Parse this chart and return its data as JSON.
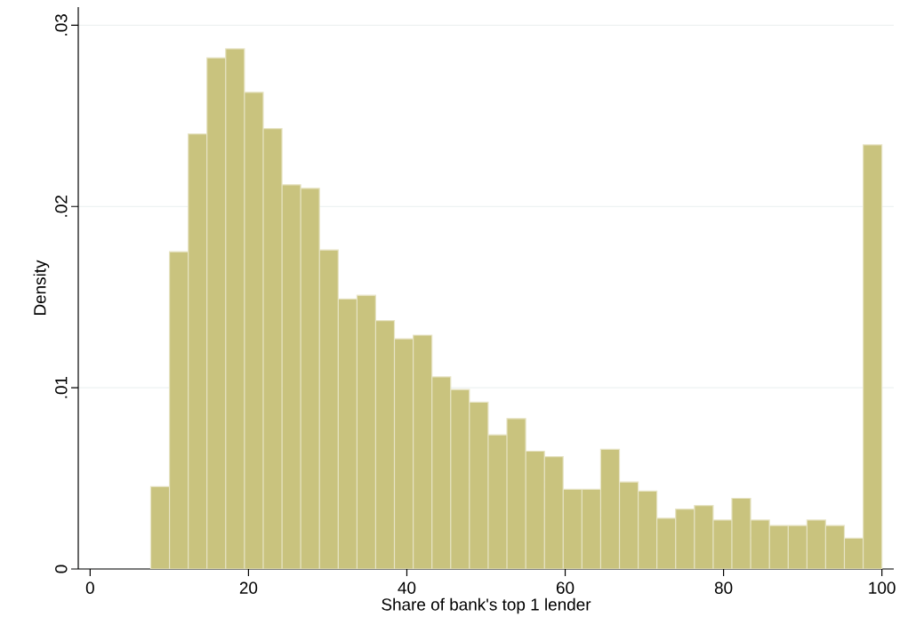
{
  "chart_data": {
    "type": "histogram",
    "xlabel": "Share of bank's top 1 lender",
    "ylabel": "Density",
    "bins": [
      7.65,
      10.02,
      12.39,
      14.75,
      17.12,
      19.49,
      21.86,
      24.23,
      26.59,
      28.96,
      31.33,
      33.7,
      36.06,
      38.43,
      40.8,
      43.17,
      45.54,
      47.9,
      50.27,
      52.64,
      55.01,
      57.38,
      59.74,
      62.11,
      64.48,
      66.85,
      69.22,
      71.58,
      73.95,
      76.32,
      78.69,
      81.05,
      83.42,
      85.79,
      88.16,
      90.53,
      92.89,
      95.26,
      97.63,
      100
    ],
    "values": [
      0.00455,
      0.0175,
      0.024,
      0.0282,
      0.0287,
      0.0263,
      0.0243,
      0.0212,
      0.021,
      0.0176,
      0.0149,
      0.0151,
      0.0137,
      0.0127,
      0.0129,
      0.0106,
      0.0099,
      0.0092,
      0.0074,
      0.0083,
      0.0065,
      0.0062,
      0.0044,
      0.0044,
      0.0066,
      0.0048,
      0.0043,
      0.0028,
      0.0033,
      0.0035,
      0.0027,
      0.0039,
      0.0027,
      0.0024,
      0.0024,
      0.0027,
      0.0024,
      0.0017,
      0.0234
    ],
    "color": "#c9c37e",
    "xlim": [
      -1.5,
      101.5
    ],
    "ylim": [
      0,
      0.031
    ],
    "xticks": [
      0,
      20,
      40,
      60,
      80,
      100
    ],
    "yticks": [
      0,
      {
        "value": 0.01,
        "label": ".01"
      },
      {
        "value": 0.02,
        "label": ".02"
      },
      {
        "value": 0.03,
        "label": ".03"
      }
    ],
    "grid": "y"
  }
}
